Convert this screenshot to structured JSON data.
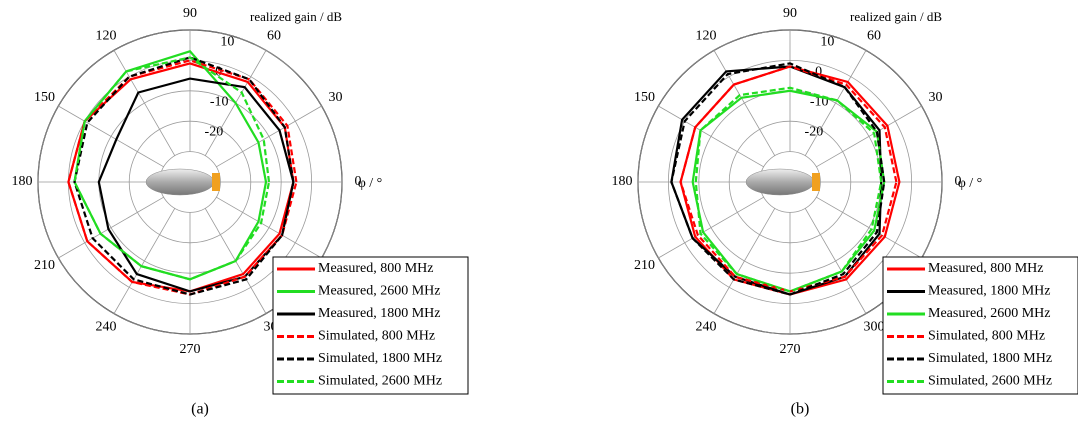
{
  "chart_data": [
    {
      "type": "polar",
      "panel_label": "(a)",
      "r_label": "realized gain / dB",
      "theta_label": "φ / °",
      "rlim": [
        -40,
        10
      ],
      "rticks": [
        -20,
        -10,
        0,
        10
      ],
      "thetaticks": [
        0,
        30,
        60,
        90,
        120,
        150,
        180,
        210,
        240,
        270,
        300,
        330
      ],
      "theta": [
        0,
        30,
        60,
        90,
        120,
        150,
        180,
        210,
        240,
        270,
        300,
        330
      ],
      "series": [
        {
          "name": "Measured, 800 MHz",
          "color": "#ff0000",
          "dashed": false,
          "values": [
            -6,
            -4,
            -2,
            -1,
            -1,
            0,
            0,
            -1,
            -2,
            -4,
            -5,
            -6
          ]
        },
        {
          "name": "Measured, 2600 MHz",
          "color": "#22dd22",
          "dashed": false,
          "values": [
            -15,
            -14,
            -10,
            3,
            2,
            0,
            -2,
            -6,
            -8,
            -8,
            -10,
            -14
          ]
        },
        {
          "name": "Measured, 1800 MHz",
          "color": "#000000",
          "dashed": false,
          "values": [
            -6,
            -6,
            -4,
            -6,
            -6,
            -12,
            -10,
            -9,
            -5,
            -4,
            -4,
            -5
          ]
        },
        {
          "name": "Simulated, 800 MHz",
          "color": "#ff0000",
          "dashed": true,
          "values": [
            -5,
            -3,
            -1,
            0,
            0,
            0,
            0,
            -1,
            -2,
            -3,
            -4,
            -5
          ]
        },
        {
          "name": "Simulated, 1800 MHz",
          "color": "#000000",
          "dashed": true,
          "values": [
            -6,
            -4,
            -1,
            1,
            0,
            -1,
            -2,
            -3,
            -3,
            -3,
            -3,
            -5
          ]
        },
        {
          "name": "Simulated, 2600 MHz",
          "color": "#22dd22",
          "dashed": true,
          "values": [
            -14,
            -12,
            -6,
            1,
            2,
            0,
            -2,
            -6,
            -8,
            -8,
            -10,
            -13
          ]
        }
      ]
    },
    {
      "type": "polar",
      "panel_label": "(b)",
      "r_label": "realized gain / dB",
      "theta_label": "φ / °",
      "rlim": [
        -40,
        10
      ],
      "rticks": [
        -20,
        -10,
        0,
        10
      ],
      "thetaticks": [
        0,
        30,
        60,
        90,
        120,
        150,
        180,
        210,
        240,
        270,
        300,
        330
      ],
      "theta": [
        0,
        30,
        60,
        90,
        120,
        150,
        180,
        210,
        240,
        270,
        300,
        330
      ],
      "series": [
        {
          "name": "Measured, 800 MHz",
          "color": "#ff0000",
          "dashed": false,
          "values": [
            -4,
            -3,
            -2,
            -2,
            -3,
            -4,
            -4,
            -4,
            -3,
            -3,
            -3,
            -4
          ]
        },
        {
          "name": "Measured, 1800 MHz",
          "color": "#000000",
          "dashed": false,
          "values": [
            -10,
            -6,
            -4,
            -2,
            2,
            1,
            -1,
            -3,
            -4,
            -3,
            -4,
            -6
          ]
        },
        {
          "name": "Measured, 2600 MHz",
          "color": "#22dd22",
          "dashed": false,
          "values": [
            -9,
            -7,
            -9,
            -10,
            -8,
            -6,
            -8,
            -7,
            -5,
            -4,
            -6,
            -8
          ]
        },
        {
          "name": "Simulated, 800 MHz",
          "color": "#ff0000",
          "dashed": true,
          "values": [
            -5,
            -4,
            -3,
            -2,
            -3,
            -4,
            -4,
            -5,
            -4,
            -4,
            -4,
            -5
          ]
        },
        {
          "name": "Simulated, 1800 MHz",
          "color": "#000000",
          "dashed": true,
          "values": [
            -9,
            -7,
            -4,
            -1,
            1,
            0,
            -1,
            -3,
            -3,
            -3,
            -5,
            -7
          ]
        },
        {
          "name": "Simulated, 2600 MHz",
          "color": "#22dd22",
          "dashed": true,
          "values": [
            -10,
            -8,
            -9,
            -9,
            -7,
            -6,
            -9,
            -6,
            -5,
            -4,
            -6,
            -9
          ]
        }
      ]
    }
  ]
}
